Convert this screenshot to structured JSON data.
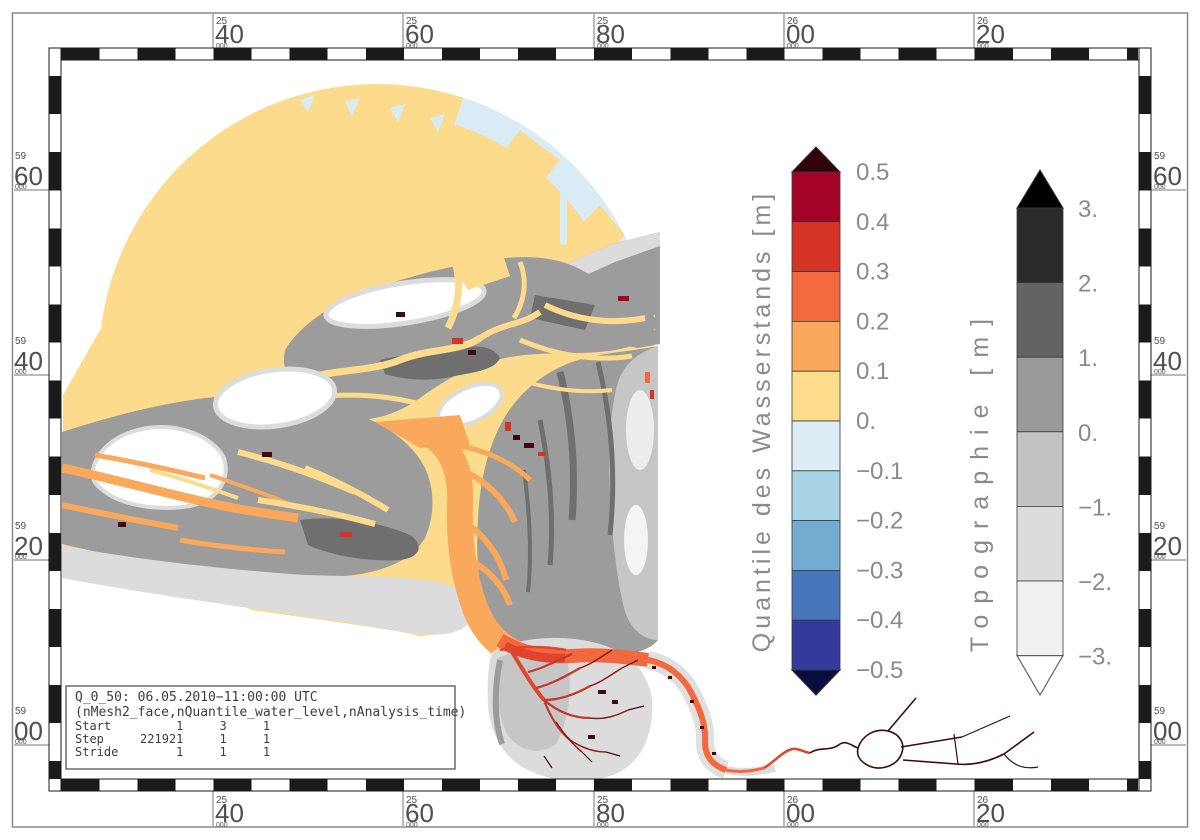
{
  "axes": {
    "top": {
      "ticks": [
        {
          "sup": "25",
          "main": "40",
          "sub": "000"
        },
        {
          "sup": "25",
          "main": "60",
          "sub": "000"
        },
        {
          "sup": "25",
          "main": "80",
          "sub": "000"
        },
        {
          "sup": "26",
          "main": "00",
          "sub": "000"
        },
        {
          "sup": "26",
          "main": "20",
          "sub": "000"
        }
      ]
    },
    "bottom": {
      "ticks": [
        {
          "sup": "25",
          "main": "40",
          "sub": "000"
        },
        {
          "sup": "25",
          "main": "60",
          "sub": "000"
        },
        {
          "sup": "25",
          "main": "80",
          "sub": "000"
        },
        {
          "sup": "26",
          "main": "00",
          "sub": "000"
        },
        {
          "sup": "26",
          "main": "20",
          "sub": "000"
        }
      ]
    },
    "left": {
      "ticks": [
        {
          "sup": "59",
          "main": "60",
          "sub": "000"
        },
        {
          "sup": "59",
          "main": "40",
          "sub": "000"
        },
        {
          "sup": "59",
          "main": "20",
          "sub": "000"
        },
        {
          "sup": "59",
          "main": "00",
          "sub": "000"
        }
      ]
    },
    "right": {
      "ticks": [
        {
          "sup": "59",
          "main": "60",
          "sub": "000"
        },
        {
          "sup": "59",
          "main": "40",
          "sub": "000"
        },
        {
          "sup": "59",
          "main": "20",
          "sub": "000"
        },
        {
          "sup": "59",
          "main": "00",
          "sub": "000"
        }
      ]
    }
  },
  "colorbars": [
    {
      "id": "quantile",
      "title": "Quantile des Wasserstands [m]",
      "tick_labels": [
        "0.5",
        "0.4",
        "0.3",
        "0.2",
        "0.1",
        "0.",
        "−0.1",
        "−0.2",
        "−0.3",
        "−0.4",
        "−0.5"
      ],
      "cell_colors_top_to_bottom": [
        "#a30326",
        "#d63327",
        "#f2683f",
        "#faa95c",
        "#fedc8c",
        "#dcedf6",
        "#a8d3e5",
        "#74abd0",
        "#4577ba",
        "#343a9b"
      ],
      "over_color": "#330109",
      "under_color": "#0a0d3f"
    },
    {
      "id": "topographie",
      "title": "Topographie [m]",
      "tick_labels": [
        "3.",
        "2.",
        "1.",
        "0.",
        "−1.",
        "−2.",
        "−3."
      ],
      "cell_colors_top_to_bottom": [
        "#2b2b2b",
        "#636363",
        "#9a9a9a",
        "#c2c2c2",
        "#dcdcdc",
        "#f1f1f1"
      ],
      "over_color": "#000000",
      "under_color": "#ffffff"
    }
  ],
  "info_box": {
    "line1": "Q_0_50: 06.05.2010−11:00:00 UTC",
    "line2": "(nMesh2_face,nQuantile_water_level,nAnalysis_time)",
    "rows": [
      "Start         1     3     1",
      "Step     221921     1     1",
      "Stride        1     1     1"
    ]
  },
  "palette": {
    "sea_yellow": "#fcdb8d",
    "pale_blue": "#d9ecf6",
    "orange": "#faa95c",
    "orange_red": "#f2683f",
    "red": "#d63327",
    "crimson": "#a30326",
    "dark_maroon": "#3c0a0c",
    "river_red": "#e0452c",
    "branch_red": "#c0392b",
    "branch_dark": "#8c1a16",
    "flat_gray": "#9c9c9c",
    "dark_gray": "#6f6f6f",
    "light_gray": "#c6c6c6",
    "lighter_gray": "#dcdcdc",
    "pale_gray": "#ededed",
    "white": "#ffffff",
    "frame_black": "#1a1a1a",
    "frame_gray": "#8a8a8a",
    "tick_text": "#4f4f4f",
    "cbar_text": "#8a8a8a",
    "info_text": "#3d3d3d"
  },
  "chart_data": {
    "type": "map",
    "title": "Q_0_50: 06.05.2010−11:00:00 UTC",
    "variable": "(nMesh2_face,nQuantile_water_level,nAnalysis_time)",
    "top_bottom_axis_ticks_m": [
      2540000,
      2560000,
      2580000,
      2600000,
      2620000
    ],
    "left_right_axis_ticks_m": [
      5960000,
      5940000,
      5920000,
      5900000
    ],
    "index_table": {
      "columns": [
        "nMesh2_face",
        "nQuantile_water_level",
        "nAnalysis_time"
      ],
      "Start": [
        1,
        3,
        1
      ],
      "Step": [
        221921,
        1,
        1
      ],
      "Stride": [
        1,
        1,
        1
      ]
    },
    "legends": [
      {
        "title": "Quantile des Wasserstands [m]",
        "boundaries": [
          0.5,
          0.4,
          0.3,
          0.2,
          0.1,
          0.0,
          -0.1,
          -0.2,
          -0.3,
          -0.4,
          -0.5
        ]
      },
      {
        "title": "Topographie [m]",
        "boundaries": [
          3,
          2,
          1,
          0,
          -1,
          -2,
          -3
        ]
      }
    ]
  }
}
